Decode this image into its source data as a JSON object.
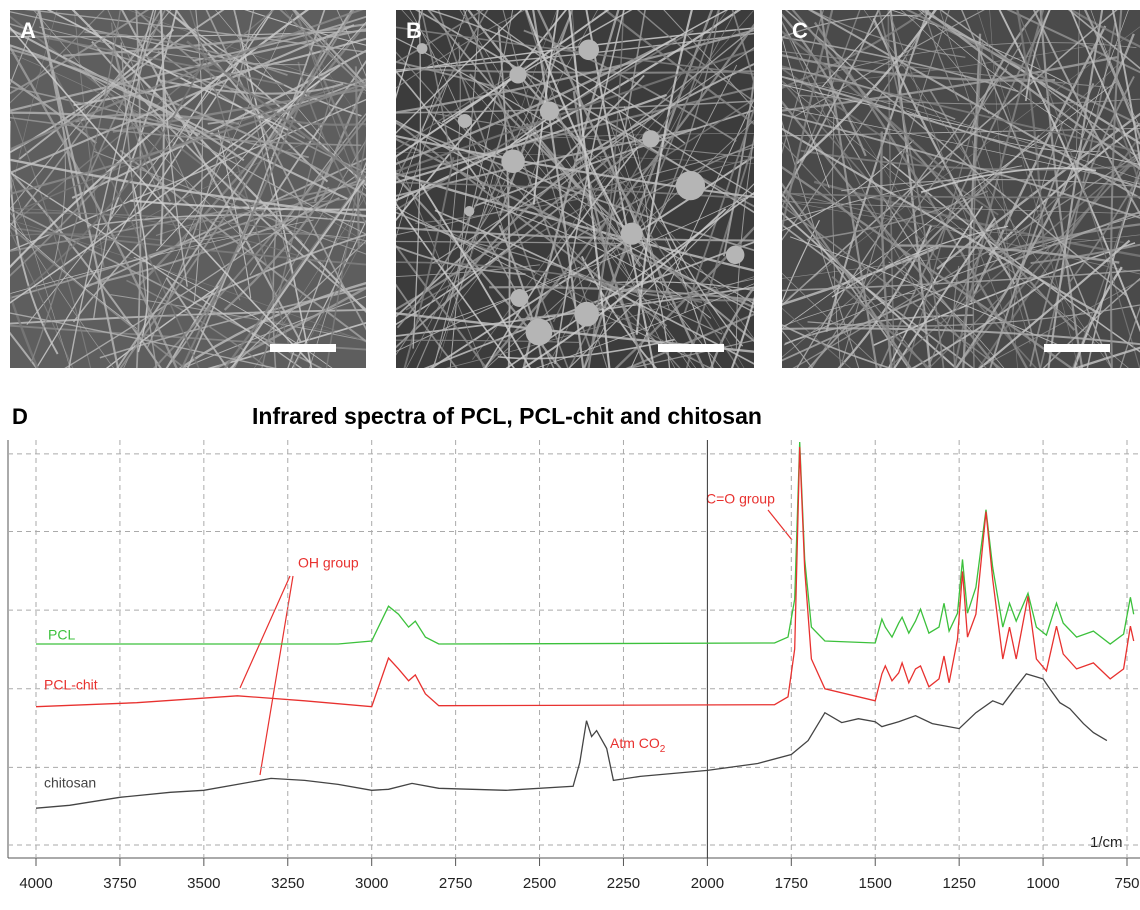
{
  "panels": [
    {
      "label": "A"
    },
    {
      "label": "B"
    },
    {
      "label": "C"
    }
  ],
  "chart_data": {
    "type": "line",
    "panel_label": "D",
    "title": "Infrared spectra of PCL, PCL-chit and chitosan",
    "x_unit": "1/cm",
    "xlim": [
      4000,
      750
    ],
    "xticks": [
      4000,
      3750,
      3500,
      3250,
      3000,
      2750,
      2500,
      2250,
      2000,
      1750,
      1500,
      1250,
      1000,
      750
    ],
    "x_solid_line": 2000,
    "ylim": [
      0,
      420
    ],
    "yticks": [
      13,
      91,
      170,
      249,
      328,
      406
    ],
    "grid": true,
    "series": [
      {
        "name": "PCL",
        "color": "#3cc13c",
        "x": [
          4000,
          3100,
          3000,
          2950,
          2920,
          2890,
          2870,
          2840,
          2800,
          1800,
          1760,
          1740,
          1725,
          1710,
          1690,
          1650,
          1500,
          1480,
          1470,
          1450,
          1430,
          1420,
          1400,
          1380,
          1365,
          1340,
          1310,
          1295,
          1280,
          1255,
          1240,
          1225,
          1200,
          1170,
          1150,
          1120,
          1100,
          1080,
          1045,
          1020,
          990,
          960,
          940,
          900,
          850,
          800,
          760,
          740,
          730
        ],
        "values": [
          215,
          215,
          218,
          253,
          245,
          232,
          238,
          222,
          215,
          216,
          222,
          260,
          418,
          300,
          232,
          218,
          216,
          240,
          232,
          222,
          236,
          242,
          226,
          238,
          250,
          226,
          232,
          256,
          228,
          246,
          300,
          246,
          272,
          350,
          292,
          232,
          256,
          238,
          266,
          232,
          224,
          256,
          236,
          222,
          228,
          215,
          225,
          262,
          245
        ]
      },
      {
        "name": "PCL-chit",
        "color": "#e8312f",
        "x": [
          4000,
          3700,
          3400,
          3200,
          3000,
          2950,
          2920,
          2890,
          2870,
          2840,
          2800,
          1800,
          1760,
          1740,
          1725,
          1710,
          1690,
          1650,
          1500,
          1480,
          1470,
          1450,
          1430,
          1420,
          1400,
          1380,
          1365,
          1340,
          1310,
          1295,
          1280,
          1255,
          1240,
          1225,
          1200,
          1170,
          1150,
          1120,
          1100,
          1080,
          1045,
          1020,
          990,
          960,
          940,
          900,
          850,
          800,
          760,
          740,
          730
        ],
        "values": [
          152,
          156,
          163,
          158,
          152,
          201,
          190,
          178,
          184,
          165,
          153,
          154,
          162,
          210,
          413,
          290,
          200,
          170,
          158,
          185,
          193,
          178,
          186,
          196,
          176,
          190,
          193,
          172,
          180,
          203,
          176,
          220,
          288,
          222,
          245,
          348,
          280,
          200,
          232,
          200,
          263,
          200,
          188,
          233,
          205,
          190,
          196,
          180,
          190,
          233,
          218
        ]
      },
      {
        "name": "chitosan",
        "color": "#444444",
        "x": [
          4000,
          3900,
          3750,
          3600,
          3500,
          3400,
          3300,
          3200,
          3100,
          3000,
          2950,
          2880,
          2800,
          2600,
          2400,
          2380,
          2360,
          2345,
          2330,
          2300,
          2280,
          2200,
          2000,
          1850,
          1750,
          1700,
          1650,
          1600,
          1550,
          1500,
          1480,
          1430,
          1380,
          1330,
          1250,
          1200,
          1150,
          1120,
          1080,
          1050,
          1020,
          1000,
          980,
          950,
          920,
          880,
          850,
          810
        ],
        "values": [
          50,
          53,
          61,
          66,
          68,
          74,
          80,
          78,
          74,
          68,
          69,
          75,
          70,
          68,
          72,
          96,
          138,
          122,
          128,
          110,
          78,
          82,
          88,
          95,
          104,
          118,
          146,
          136,
          140,
          137,
          132,
          137,
          143,
          135,
          130,
          146,
          158,
          154,
          172,
          185,
          182,
          180,
          170,
          156,
          150,
          135,
          126,
          118
        ]
      }
    ],
    "annotations": [
      {
        "text": "OH group"
      },
      {
        "text": "C=O group"
      },
      {
        "text": "Atm CO",
        "subscript": "2"
      }
    ]
  }
}
